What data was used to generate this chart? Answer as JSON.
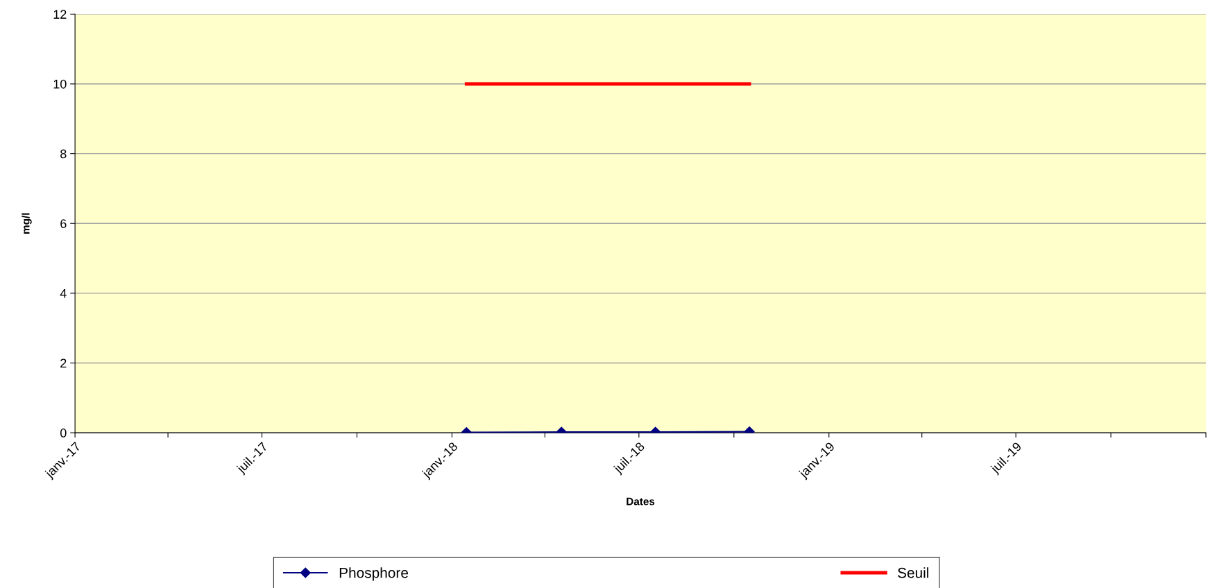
{
  "chart_data": {
    "type": "line",
    "xlabel": "Dates",
    "ylabel": "mg/l",
    "series": [
      {
        "name": "Phosphore",
        "color": "#000080",
        "marker": "diamond",
        "x": [
          "2018-01-15",
          "2018-04-17",
          "2018-07-17",
          "2018-10-16"
        ],
        "values": [
          0.01,
          0.02,
          0.02,
          0.03
        ]
      },
      {
        "name": "Seuil",
        "color": "#ff0000",
        "marker": "none",
        "x": [
          "2018-01-15",
          "2018-10-16"
        ],
        "values": [
          10,
          10
        ]
      }
    ],
    "xlim": [
      "2017-01-01",
      "2020-01-01"
    ],
    "xticks": [
      {
        "value": "2017-01-01",
        "label": "janv.-17"
      },
      {
        "value": "2017-04-01",
        "label": null
      },
      {
        "value": "2017-07-01",
        "label": "juil.-17"
      },
      {
        "value": "2017-10-01",
        "label": null
      },
      {
        "value": "2018-01-01",
        "label": "janv.-18"
      },
      {
        "value": "2018-04-01",
        "label": null
      },
      {
        "value": "2018-07-01",
        "label": "juil.-18"
      },
      {
        "value": "2018-10-01",
        "label": null
      },
      {
        "value": "2019-01-01",
        "label": "janv.-19"
      },
      {
        "value": "2019-04-01",
        "label": null
      },
      {
        "value": "2019-07-01",
        "label": "juil.-19"
      },
      {
        "value": "2019-10-01",
        "label": null
      },
      {
        "value": "2020-01-01",
        "label": null
      }
    ],
    "ylim": [
      0,
      12
    ],
    "yticks": [
      0,
      2,
      4,
      6,
      8,
      10,
      12
    ],
    "grid": "y",
    "legend": "bottom",
    "line_style": "solid"
  }
}
